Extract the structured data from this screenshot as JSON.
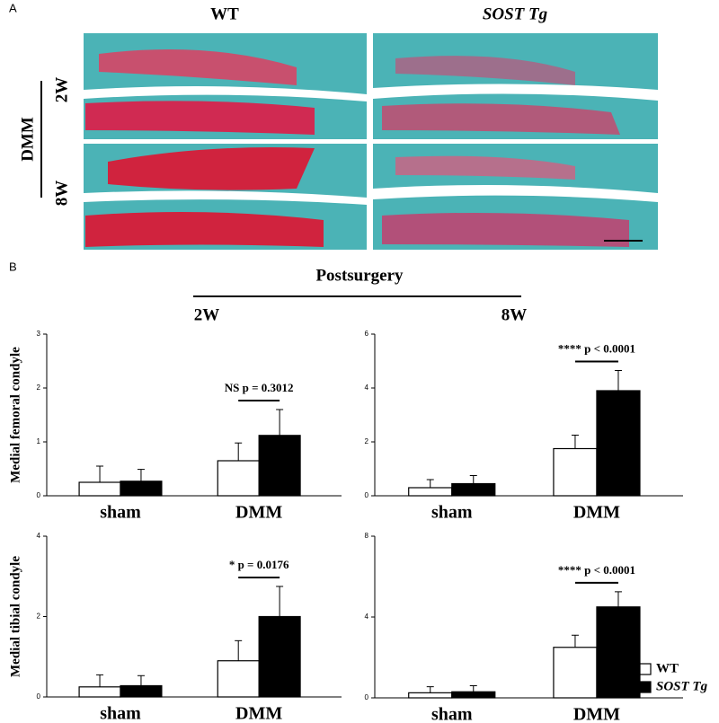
{
  "panel_a": {
    "label": "A",
    "columns": [
      "WT",
      "SOST Tg"
    ],
    "group": "DMM",
    "rows": [
      "2W",
      "8W"
    ]
  },
  "panel_b": {
    "label": "B",
    "header": "Postsurgery",
    "columns": [
      "2W",
      "8W"
    ]
  },
  "chart_data": [
    {
      "type": "bar",
      "ylabel": "Medial femoral condyle",
      "categories": [
        "sham",
        "DMM"
      ],
      "series": [
        {
          "color": "#ffffff",
          "values": [
            0.25,
            0.65
          ],
          "errors": [
            0.3,
            0.33
          ]
        },
        {
          "color": "#000000",
          "values": [
            0.27,
            1.12
          ],
          "errors": [
            0.22,
            0.48
          ]
        }
      ],
      "ylim": [
        0,
        3
      ],
      "yticks": [
        0,
        1,
        2,
        3
      ],
      "annotation": "NS p = 0.3012"
    },
    {
      "type": "bar",
      "categories": [
        "sham",
        "DMM"
      ],
      "series": [
        {
          "color": "#ffffff",
          "values": [
            0.3,
            1.75
          ],
          "errors": [
            0.3,
            0.5
          ]
        },
        {
          "color": "#000000",
          "values": [
            0.45,
            3.9
          ],
          "errors": [
            0.3,
            0.75
          ]
        }
      ],
      "ylim": [
        0,
        6
      ],
      "yticks": [
        0,
        2,
        4,
        6
      ],
      "annotation": "**** p < 0.0001"
    },
    {
      "type": "bar",
      "ylabel": "Medial tibial condyle",
      "categories": [
        "sham",
        "DMM"
      ],
      "series": [
        {
          "color": "#ffffff",
          "values": [
            0.25,
            0.9
          ],
          "errors": [
            0.3,
            0.5
          ]
        },
        {
          "color": "#000000",
          "values": [
            0.28,
            2.0
          ],
          "errors": [
            0.25,
            0.75
          ]
        }
      ],
      "ylim": [
        0,
        4
      ],
      "yticks": [
        0,
        2,
        4
      ],
      "annotation": "* p = 0.0176"
    },
    {
      "type": "bar",
      "categories": [
        "sham",
        "DMM"
      ],
      "series": [
        {
          "name": "WT",
          "color": "#ffffff",
          "values": [
            0.25,
            2.5
          ],
          "errors": [
            0.3,
            0.6
          ]
        },
        {
          "name": "SOST Tg",
          "color": "#000000",
          "values": [
            0.3,
            4.5
          ],
          "errors": [
            0.3,
            0.75
          ]
        }
      ],
      "ylim": [
        0,
        8
      ],
      "yticks": [
        0,
        4,
        8
      ],
      "annotation": "**** p < 0.0001",
      "legend": "right"
    }
  ]
}
